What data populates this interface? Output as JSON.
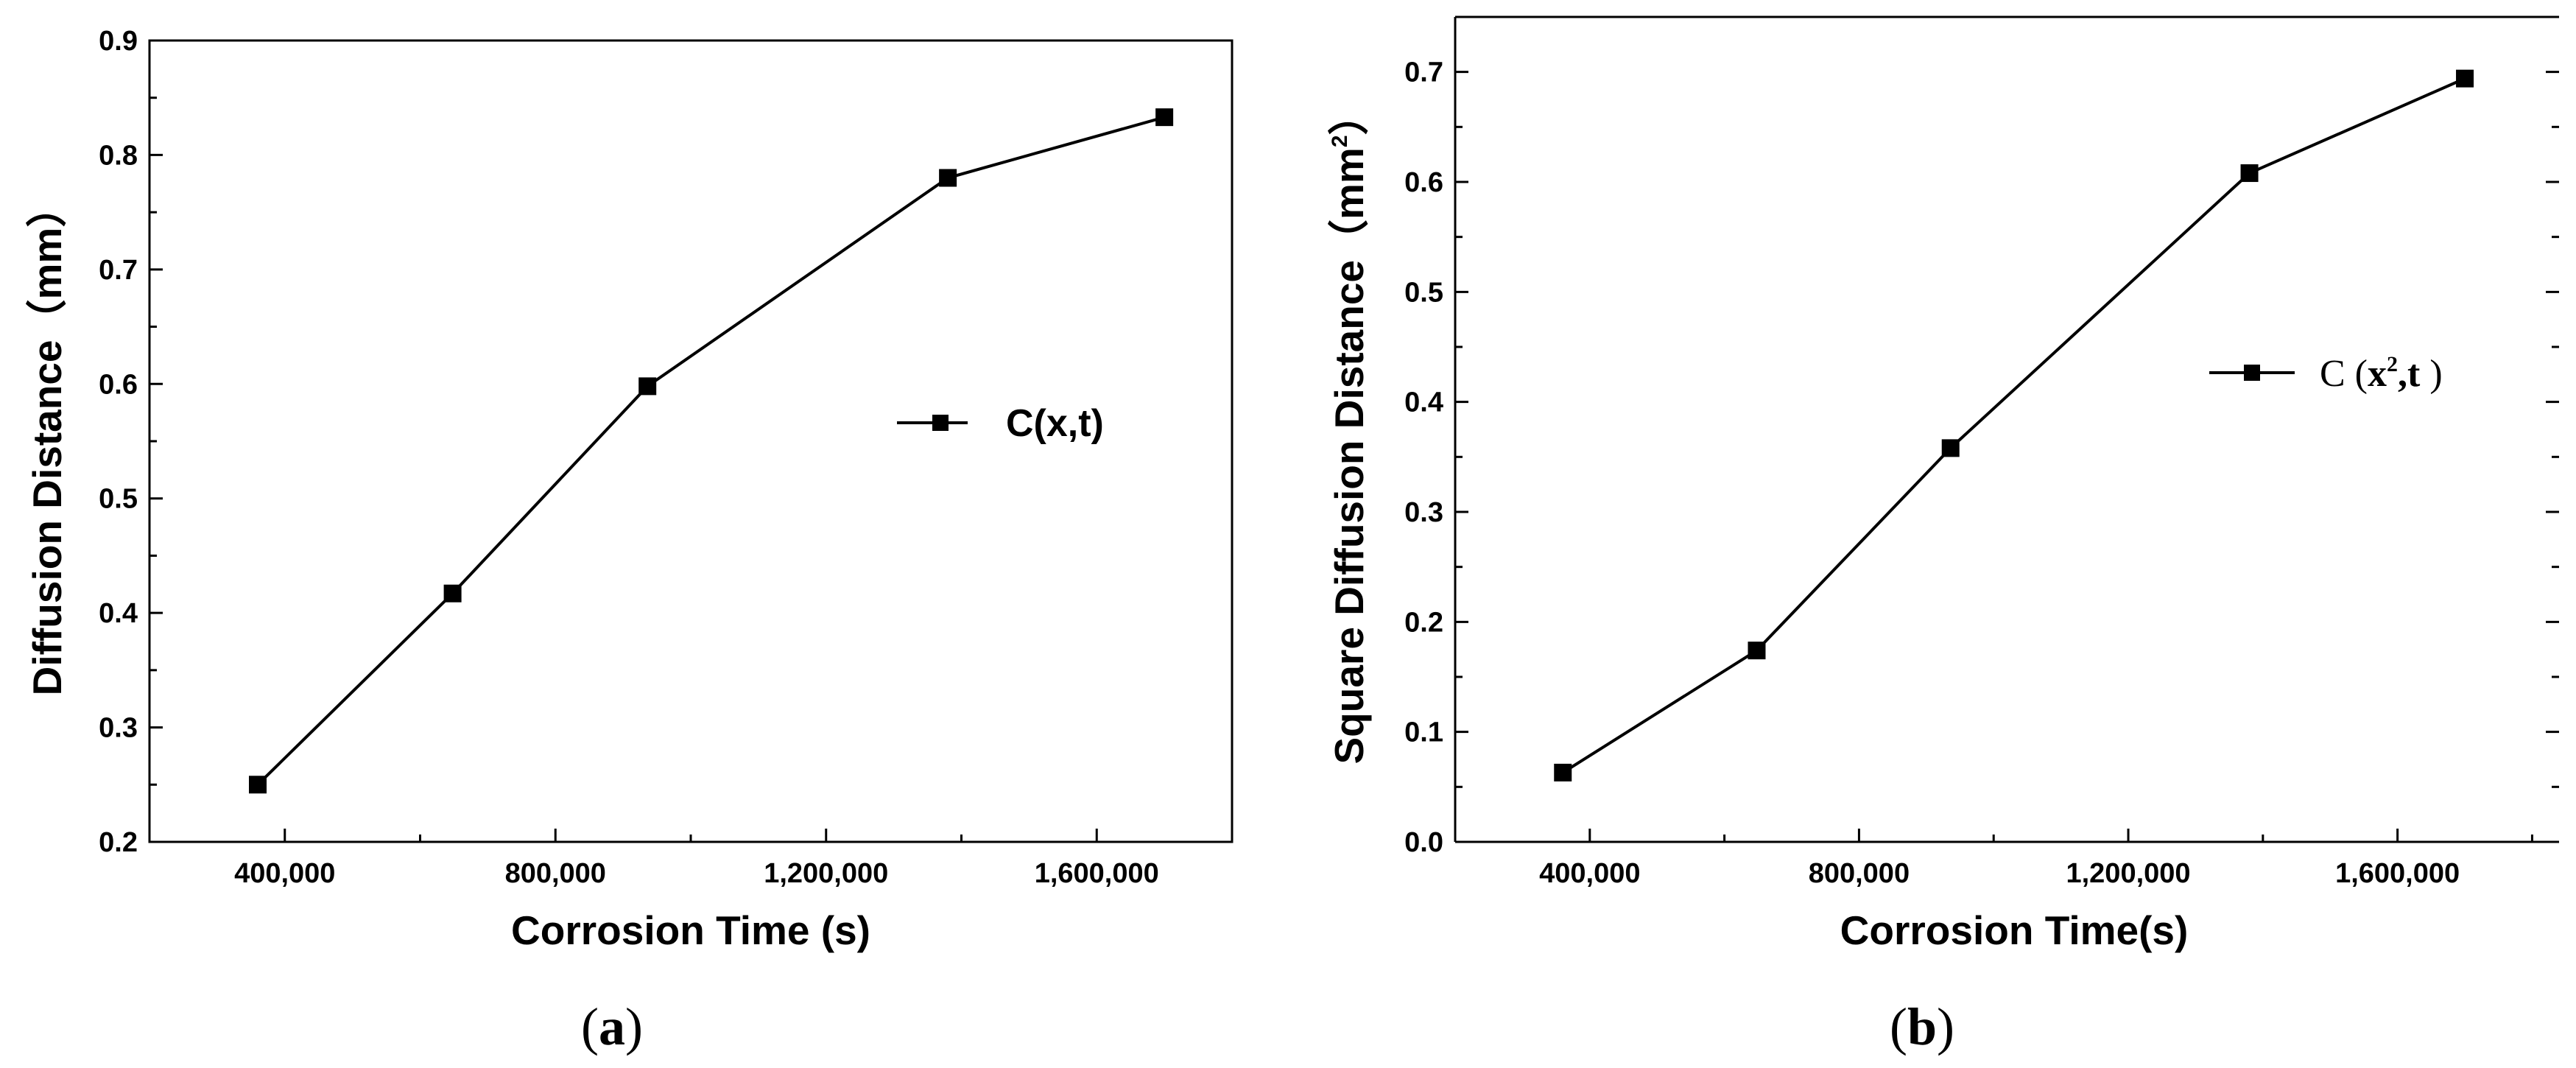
{
  "chart_data": [
    {
      "type": "line",
      "panel_label": {
        "open": "(",
        "letter": "a",
        "close": ")"
      },
      "xlabel": "Corrosion Time (s)",
      "ylabel": "Diffusion Distance（mm）",
      "xlim": [
        200000,
        1800000
      ],
      "ylim": [
        0.2,
        0.9
      ],
      "xticks": [
        400000,
        800000,
        1200000,
        1600000
      ],
      "xtick_labels": [
        "400,000",
        "800,000",
        "1,200,000",
        "1,600,000"
      ],
      "yticks": [
        0.2,
        0.3,
        0.4,
        0.5,
        0.6,
        0.7,
        0.8,
        0.9
      ],
      "ytick_labels": [
        "0.2",
        "0.3",
        "0.4",
        "0.5",
        "0.6",
        "0.7",
        "0.8",
        "0.9"
      ],
      "legend_position": "right-middle",
      "series": [
        {
          "name": "C(x,t)",
          "marker": "square",
          "color": "#000000",
          "x": [
            360000,
            648000,
            936000,
            1380000,
            1700000
          ],
          "y": [
            0.25,
            0.417,
            0.598,
            0.78,
            0.833
          ]
        }
      ]
    },
    {
      "type": "line",
      "panel_label": {
        "open": "(",
        "letter": "b",
        "close": ")"
      },
      "xlabel": "Corrosion Time(s)",
      "ylabel": "Square Diffusion Distance（mm²）",
      "xlim": [
        200000,
        1840000
      ],
      "ylim": [
        0.0,
        0.75
      ],
      "xticks": [
        400000,
        800000,
        1200000,
        1600000
      ],
      "xtick_labels": [
        "400,000",
        "800,000",
        "1,200,000",
        "1,600,000"
      ],
      "yticks": [
        0.0,
        0.1,
        0.2,
        0.3,
        0.4,
        0.5,
        0.6,
        0.7
      ],
      "ytick_labels": [
        "0.0",
        "0.1",
        "0.2",
        "0.3",
        "0.4",
        "0.5",
        "0.6",
        "0.7"
      ],
      "legend_position": "right-middle",
      "series": [
        {
          "name": "C (x²,t )",
          "marker": "square",
          "color": "#000000",
          "x": [
            360000,
            648000,
            936000,
            1380000,
            1700000
          ],
          "y": [
            0.063,
            0.174,
            0.358,
            0.608,
            0.694
          ]
        }
      ]
    }
  ]
}
